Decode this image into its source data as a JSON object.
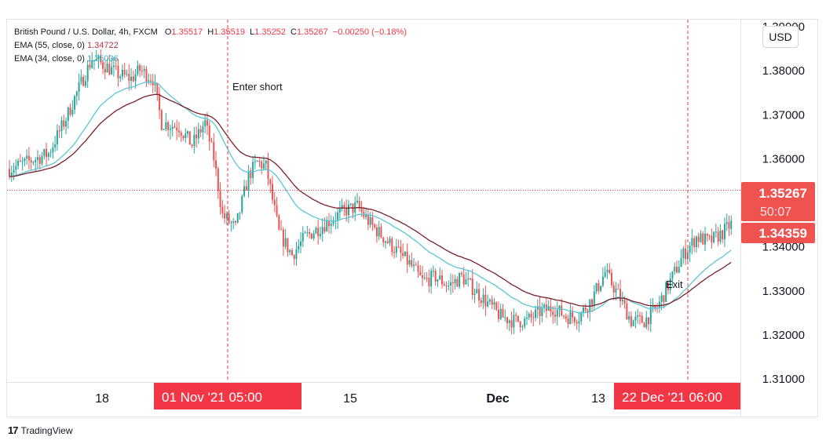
{
  "legend": {
    "symbol": "British Pound / U.S. Dollar, 4h, FXCM",
    "ohlc": [
      {
        "k": "O",
        "v": "1.35517"
      },
      {
        "k": "H",
        "v": "1.35519"
      },
      {
        "k": "L",
        "v": "1.35252"
      },
      {
        "k": "C",
        "v": "1.35267"
      }
    ],
    "change": "−0.00250 (−0.18%)",
    "ema55_label": "EMA (55, close, 0)",
    "ema55_value": "1.34722",
    "ema34_label": "EMA (34, close, 0)",
    "ema34_value": "1.35036"
  },
  "currency_button": "USD",
  "footer": {
    "logo": "17",
    "brand": "TradingView"
  },
  "colors": {
    "up": "#26a69a",
    "down": "#ef5350",
    "ema55": "#7b1f2b",
    "ema34": "#5bc6d6",
    "marker": "#f23645",
    "price_label": "#ef5350",
    "grid": "#e0e3eb"
  },
  "chart_data": {
    "type": "candlestick",
    "symbol": "GBP/USD",
    "timeframe": "4h",
    "ylim": [
      1.31,
      1.39
    ],
    "y_ticks": [
      "1.31000",
      "1.32000",
      "1.33000",
      "1.34000",
      "1.36000",
      "1.37000",
      "1.38000",
      "1.39000"
    ],
    "x_ticks": [
      "18",
      "15",
      "Dec",
      "13"
    ],
    "x_markers": [
      "01 Nov '21  05:00",
      "22 Dec '21  06:00"
    ],
    "price_labels": {
      "last": "1.35267",
      "countdown": "50:07",
      "ema": "1.34359"
    },
    "last_price": 1.35267,
    "annotations": [
      "Enter short",
      "Exit"
    ],
    "anchors": [
      [
        0,
        1.3575
      ],
      [
        8,
        1.359
      ],
      [
        18,
        1.361
      ],
      [
        26,
        1.369
      ],
      [
        33,
        1.377
      ],
      [
        38,
        1.3825
      ],
      [
        44,
        1.381
      ],
      [
        50,
        1.379
      ],
      [
        56,
        1.378
      ],
      [
        60,
        1.38
      ],
      [
        66,
        1.378
      ],
      [
        70,
        1.368
      ],
      [
        78,
        1.367
      ],
      [
        84,
        1.363
      ],
      [
        90,
        1.368
      ],
      [
        94,
        1.36
      ],
      [
        98,
        1.347
      ],
      [
        104,
        1.344
      ],
      [
        110,
        1.356
      ],
      [
        114,
        1.359
      ],
      [
        118,
        1.358
      ],
      [
        124,
        1.343
      ],
      [
        130,
        1.338
      ],
      [
        136,
        1.342
      ],
      [
        142,
        1.344
      ],
      [
        148,
        1.346
      ],
      [
        154,
        1.348
      ],
      [
        160,
        1.349
      ],
      [
        166,
        1.345
      ],
      [
        172,
        1.342
      ],
      [
        178,
        1.339
      ],
      [
        184,
        1.336
      ],
      [
        190,
        1.332
      ],
      [
        196,
        1.333
      ],
      [
        202,
        1.331
      ],
      [
        208,
        1.333
      ],
      [
        214,
        1.33
      ],
      [
        220,
        1.327
      ],
      [
        226,
        1.324
      ],
      [
        232,
        1.323
      ],
      [
        238,
        1.323
      ],
      [
        244,
        1.325
      ],
      [
        250,
        1.326
      ],
      [
        256,
        1.324
      ],
      [
        262,
        1.324
      ],
      [
        268,
        1.328
      ],
      [
        274,
        1.334
      ],
      [
        280,
        1.329
      ],
      [
        286,
        1.323
      ],
      [
        292,
        1.323
      ],
      [
        298,
        1.326
      ],
      [
        304,
        1.332
      ],
      [
        310,
        1.338
      ],
      [
        316,
        1.342
      ],
      [
        322,
        1.341
      ],
      [
        328,
        1.343
      ],
      [
        332,
        1.345
      ]
    ]
  }
}
